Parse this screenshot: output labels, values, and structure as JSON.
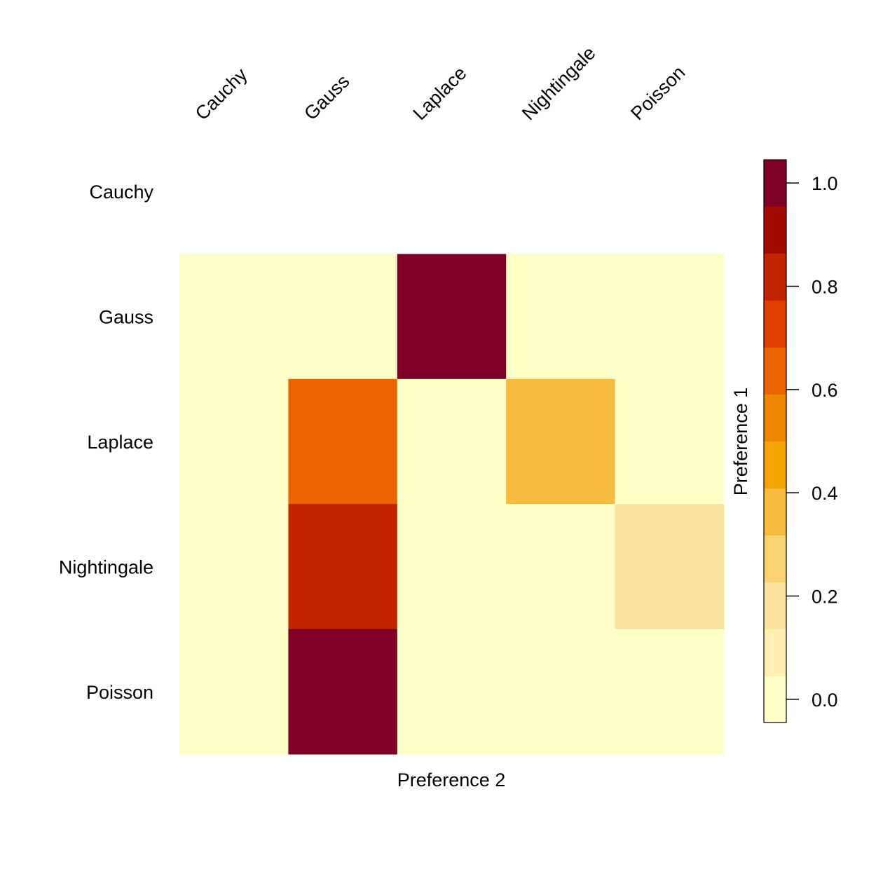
{
  "chart_data": {
    "type": "heatmap",
    "title": "",
    "xlabel": "Preference 2",
    "ylabel": "Preference 1",
    "columns": [
      "Cauchy",
      "Gauss",
      "Laplace",
      "Nightingale",
      "Poisson"
    ],
    "rows": [
      "Cauchy",
      "Gauss",
      "Laplace",
      "Nightingale",
      "Poisson"
    ],
    "values": [
      [
        null,
        null,
        null,
        null,
        null
      ],
      [
        0.0,
        0.0,
        1.0,
        0.0,
        0.0
      ],
      [
        0.0,
        0.64,
        0.0,
        0.36,
        0.0
      ],
      [
        0.0,
        0.82,
        0.0,
        0.0,
        0.18
      ],
      [
        0.0,
        1.0,
        0.0,
        0.0,
        0.0
      ]
    ],
    "colorbar": {
      "range": [
        -0.045,
        1.045
      ],
      "ticks": [
        "0.0",
        "0.2",
        "0.4",
        "0.6",
        "0.8",
        "1.0"
      ],
      "tick_values": [
        0.0,
        0.2,
        0.4,
        0.6,
        0.8,
        1.0
      ],
      "bin_edges": [
        -0.045,
        0.045,
        0.136,
        0.227,
        0.318,
        0.409,
        0.5,
        0.591,
        0.682,
        0.773,
        0.864,
        0.955,
        1.045
      ],
      "colors": [
        "#FFFFC8",
        "#FEF0B3",
        "#FBE29E",
        "#F9D36F",
        "#F7BB3D",
        "#F5A300",
        "#F18700",
        "#EB6400",
        "#E23E00",
        "#C32400",
        "#A30B00",
        "#7D0025"
      ]
    }
  }
}
